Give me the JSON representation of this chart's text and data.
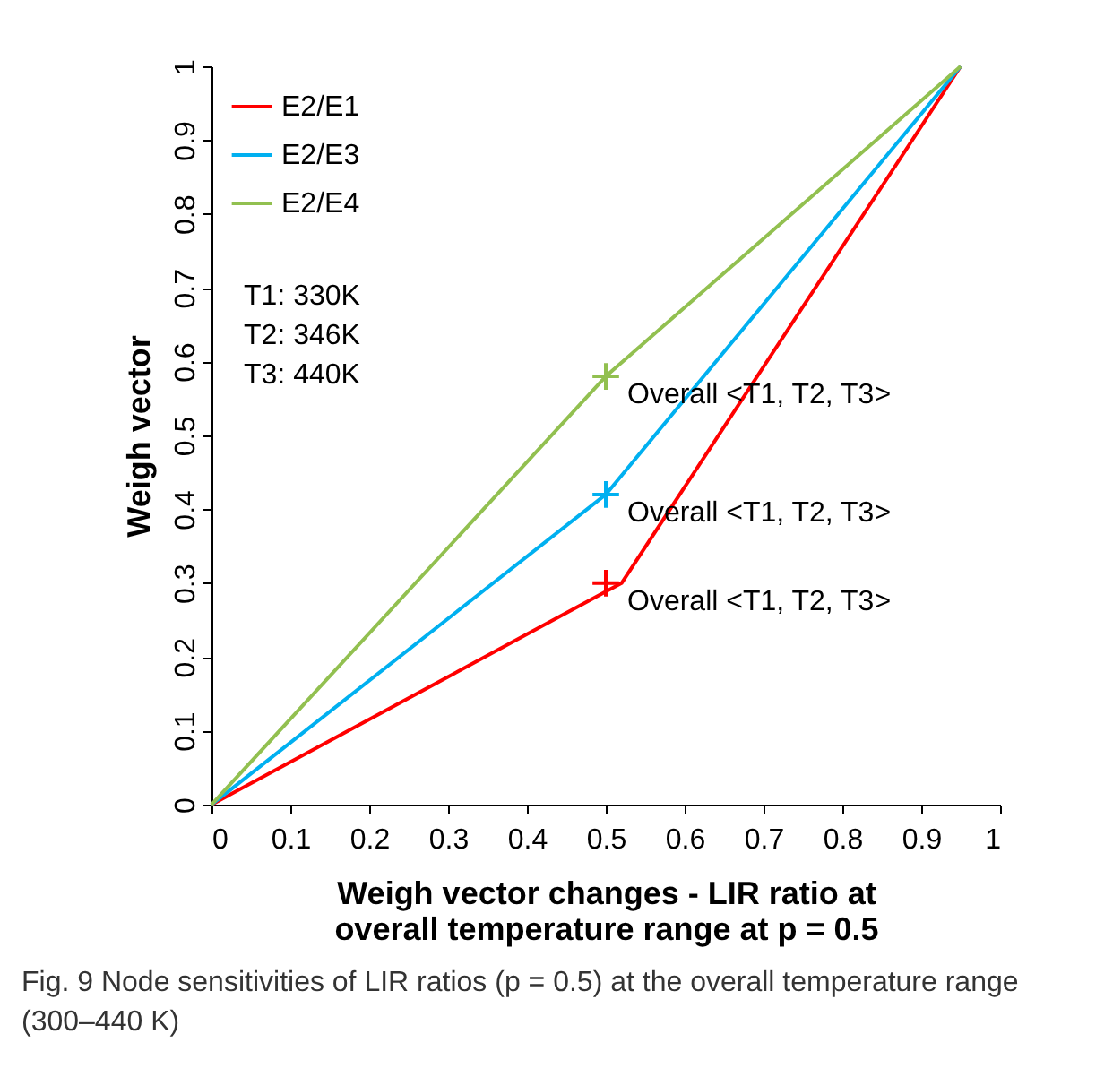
{
  "chart_data": {
    "type": "line",
    "xlabel": "Weigh vector changes -  LIR ratio at overall temperature range at p = 0.5",
    "ylabel": "Weigh vector",
    "x": [
      0,
      0.5,
      0.95
    ],
    "series": [
      {
        "name": "E2/E1",
        "color": "#ff0000",
        "x": [
          0,
          0.52,
          0.95
        ],
        "values": [
          0,
          0.3,
          1
        ]
      },
      {
        "name": "E2/E3",
        "color": "#00b0f0",
        "values": [
          0,
          0.42,
          1
        ]
      },
      {
        "name": "E2/E4",
        "color": "#92c050",
        "values": [
          0,
          0.58,
          1
        ]
      },
      {
        "type": "scatter",
        "marker": "cross",
        "x": [
          0.5,
          0.5,
          0.5
        ],
        "values": [
          0.58,
          0.42,
          0.3
        ],
        "colors": [
          "#92c050",
          "#00b0f0",
          "#ff0000"
        ]
      }
    ],
    "xlim": [
      0,
      1
    ],
    "ylim": [
      0,
      1
    ],
    "xticks": [
      0,
      0.1,
      0.2,
      0.3,
      0.4,
      0.5,
      0.6,
      0.7,
      0.8,
      0.9,
      1
    ],
    "yticks": [
      0,
      0.1,
      0.2,
      0.3,
      0.4,
      0.5,
      0.6,
      0.7,
      0.8,
      0.9,
      1
    ],
    "grid": false,
    "legend": "top left",
    "marker": "none",
    "annotations": [
      "T1: 330K",
      "T2: 346K",
      "T3: 440K",
      "Overall <T1, T2, T3>",
      "Overall <T1, T2, T3>",
      "Overall <T1, T2, T3>",
      "Fig. 9  Node sensitivities of LIR ratios (p = 0.5) at the overall temperature range (300–440 K)"
    ]
  }
}
